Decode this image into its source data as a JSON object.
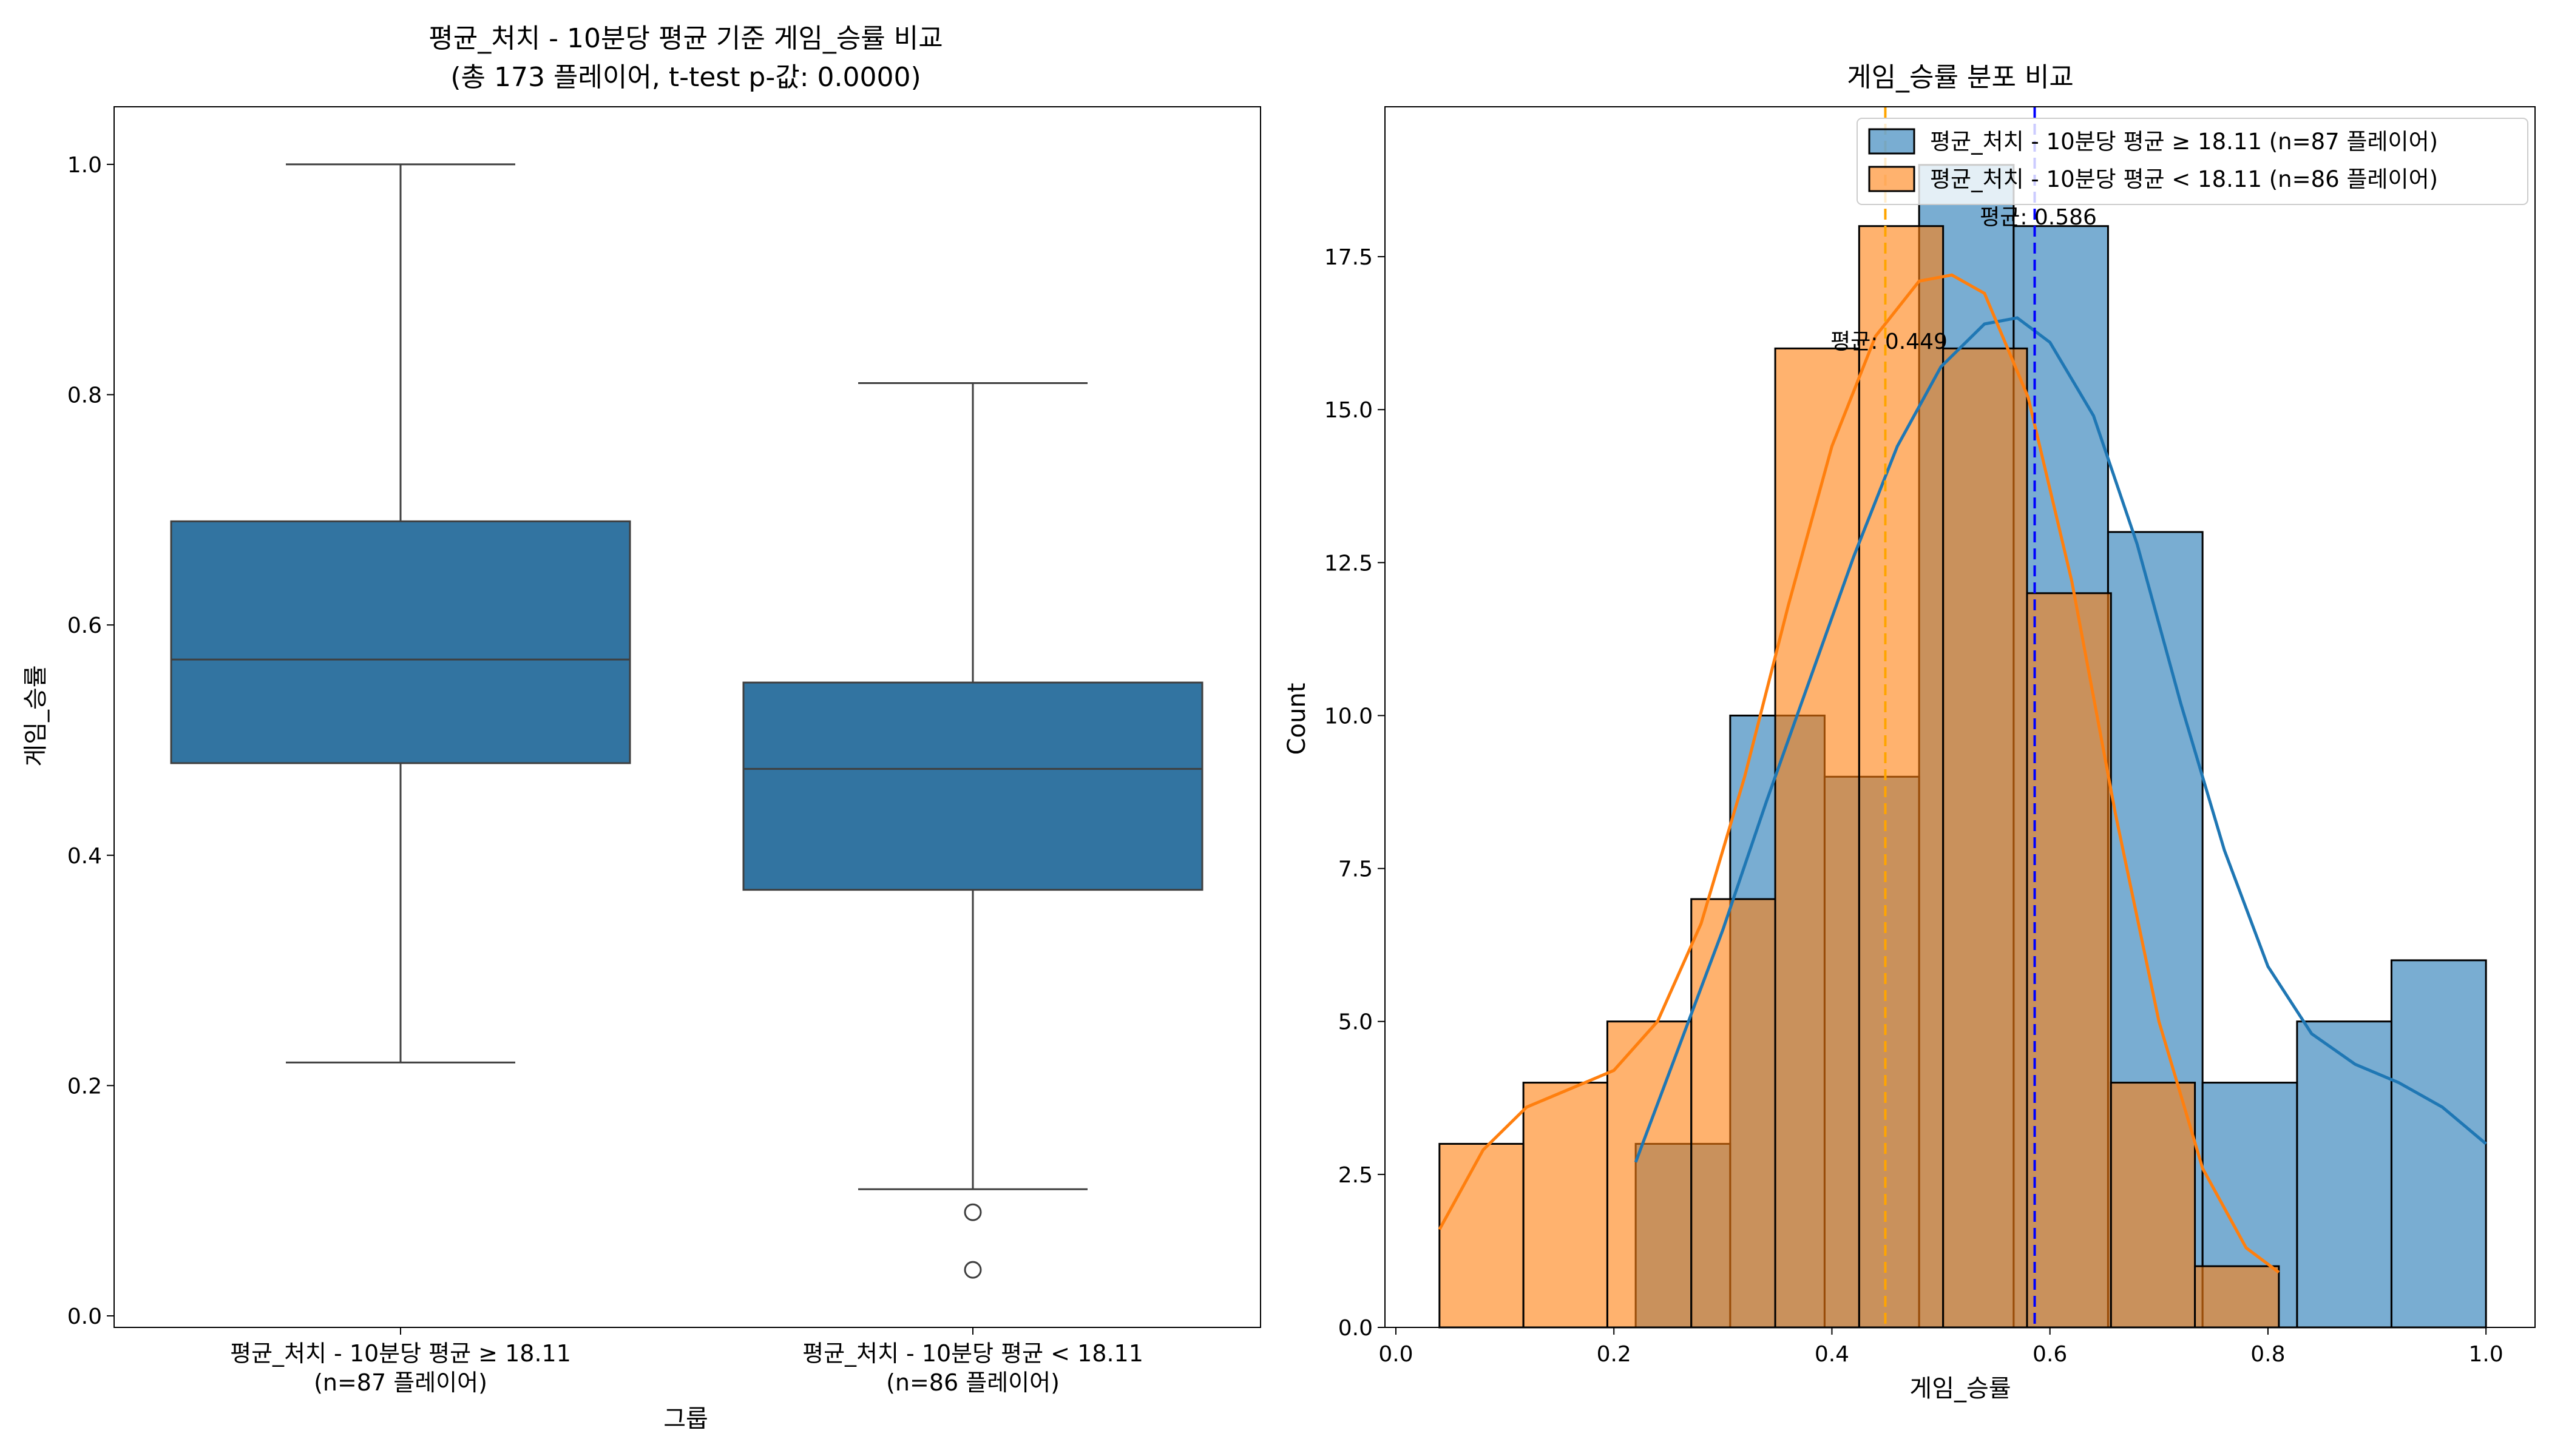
{
  "chart_data": [
    {
      "type": "box",
      "title": "평균_처치 - 10분당 평균 기준 게임_승률 비교",
      "subtitle": "(총 173 플레이어, t-test p-값: 0.0000)",
      "xlabel": "그룹",
      "ylabel": "게임_승률",
      "ylim": [
        -0.01,
        1.05
      ],
      "yticks": [
        0.0,
        0.2,
        0.4,
        0.6,
        0.8,
        1.0
      ],
      "ytick_labels": [
        "0.0",
        "0.2",
        "0.4",
        "0.6",
        "0.8",
        "1.0"
      ],
      "box_color": "#3274a1",
      "groups": [
        {
          "label": "평균_처치 - 10분당 평균 ≥ 18.11",
          "sublabel": "(n=87 플레이어)",
          "whisker_low": 0.22,
          "q1": 0.48,
          "median": 0.57,
          "q3": 0.69,
          "whisker_high": 1.0,
          "outliers": []
        },
        {
          "label": "평균_처치 - 10분당 평균 < 18.11",
          "sublabel": "(n=86 플레이어)",
          "whisker_low": 0.11,
          "q1": 0.37,
          "median": 0.475,
          "q3": 0.55,
          "whisker_high": 0.81,
          "outliers": [
            0.09,
            0.04
          ]
        }
      ]
    },
    {
      "type": "histogram",
      "title": "게임_승률 분포 비교",
      "xlabel": "게임_승률",
      "ylabel": "Count",
      "xlim": [
        -0.01,
        1.045
      ],
      "ylim": [
        0,
        19.95
      ],
      "xticks": [
        0.0,
        0.2,
        0.4,
        0.6,
        0.8,
        1.0
      ],
      "xtick_labels": [
        "0.0",
        "0.2",
        "0.4",
        "0.6",
        "0.8",
        "1.0"
      ],
      "yticks": [
        0.0,
        2.5,
        5.0,
        7.5,
        10.0,
        12.5,
        15.0,
        17.5
      ],
      "ytick_labels": [
        "0.0",
        "2.5",
        "5.0",
        "7.5",
        "10.0",
        "12.5",
        "15.0",
        "17.5"
      ],
      "legend_position": "top-right",
      "series": [
        {
          "name": "평균_처치 - 10분당 평균 ≥ 18.11 (n=87 플레이어)",
          "color": "#1f77b4",
          "bins": [
            {
              "x0": 0.22,
              "x1": 0.3067,
              "count": 3
            },
            {
              "x0": 0.3067,
              "x1": 0.3933,
              "count": 10
            },
            {
              "x0": 0.3933,
              "x1": 0.48,
              "count": 9
            },
            {
              "x0": 0.48,
              "x1": 0.5667,
              "count": 19
            },
            {
              "x0": 0.5667,
              "x1": 0.6533,
              "count": 18
            },
            {
              "x0": 0.6533,
              "x1": 0.74,
              "count": 13
            },
            {
              "x0": 0.74,
              "x1": 0.8267,
              "count": 4
            },
            {
              "x0": 0.8267,
              "x1": 0.9133,
              "count": 5
            },
            {
              "x0": 0.9133,
              "x1": 1.0,
              "count": 6
            }
          ],
          "kde": [
            [
              0.22,
              2.7
            ],
            [
              0.26,
              4.6
            ],
            [
              0.3,
              6.5
            ],
            [
              0.34,
              8.6
            ],
            [
              0.38,
              10.6
            ],
            [
              0.42,
              12.6
            ],
            [
              0.46,
              14.4
            ],
            [
              0.5,
              15.7
            ],
            [
              0.54,
              16.4
            ],
            [
              0.57,
              16.5
            ],
            [
              0.6,
              16.1
            ],
            [
              0.64,
              14.9
            ],
            [
              0.68,
              12.8
            ],
            [
              0.72,
              10.2
            ],
            [
              0.76,
              7.8
            ],
            [
              0.8,
              5.9
            ],
            [
              0.84,
              4.8
            ],
            [
              0.88,
              4.3
            ],
            [
              0.92,
              4.0
            ],
            [
              0.96,
              3.6
            ],
            [
              1.0,
              3.0
            ]
          ],
          "mean": 0.586,
          "mean_label": "평균: 0.586",
          "mean_line_color": "#0000ff"
        },
        {
          "name": "평균_처치 - 10분당 평균 < 18.11 (n=86 플레이어)",
          "color": "#ff7f0e",
          "bins": [
            {
              "x0": 0.04,
              "x1": 0.117,
              "count": 3
            },
            {
              "x0": 0.117,
              "x1": 0.194,
              "count": 4
            },
            {
              "x0": 0.194,
              "x1": 0.271,
              "count": 5
            },
            {
              "x0": 0.271,
              "x1": 0.348,
              "count": 7
            },
            {
              "x0": 0.348,
              "x1": 0.425,
              "count": 16
            },
            {
              "x0": 0.425,
              "x1": 0.502,
              "count": 18
            },
            {
              "x0": 0.502,
              "x1": 0.579,
              "count": 16
            },
            {
              "x0": 0.579,
              "x1": 0.656,
              "count": 12
            },
            {
              "x0": 0.656,
              "x1": 0.733,
              "count": 4
            },
            {
              "x0": 0.733,
              "x1": 0.81,
              "count": 1
            }
          ],
          "kde": [
            [
              0.04,
              1.6
            ],
            [
              0.08,
              2.9
            ],
            [
              0.12,
              3.6
            ],
            [
              0.16,
              3.9
            ],
            [
              0.2,
              4.2
            ],
            [
              0.24,
              5.0
            ],
            [
              0.28,
              6.6
            ],
            [
              0.32,
              9.0
            ],
            [
              0.36,
              11.8
            ],
            [
              0.4,
              14.4
            ],
            [
              0.44,
              16.2
            ],
            [
              0.48,
              17.1
            ],
            [
              0.51,
              17.2
            ],
            [
              0.54,
              16.9
            ],
            [
              0.58,
              15.2
            ],
            [
              0.62,
              12.2
            ],
            [
              0.66,
              8.4
            ],
            [
              0.7,
              5.0
            ],
            [
              0.74,
              2.6
            ],
            [
              0.78,
              1.3
            ],
            [
              0.81,
              0.9
            ]
          ],
          "mean": 0.449,
          "mean_label": "평균: 0.449",
          "mean_line_color": "#ffa500"
        }
      ]
    }
  ]
}
